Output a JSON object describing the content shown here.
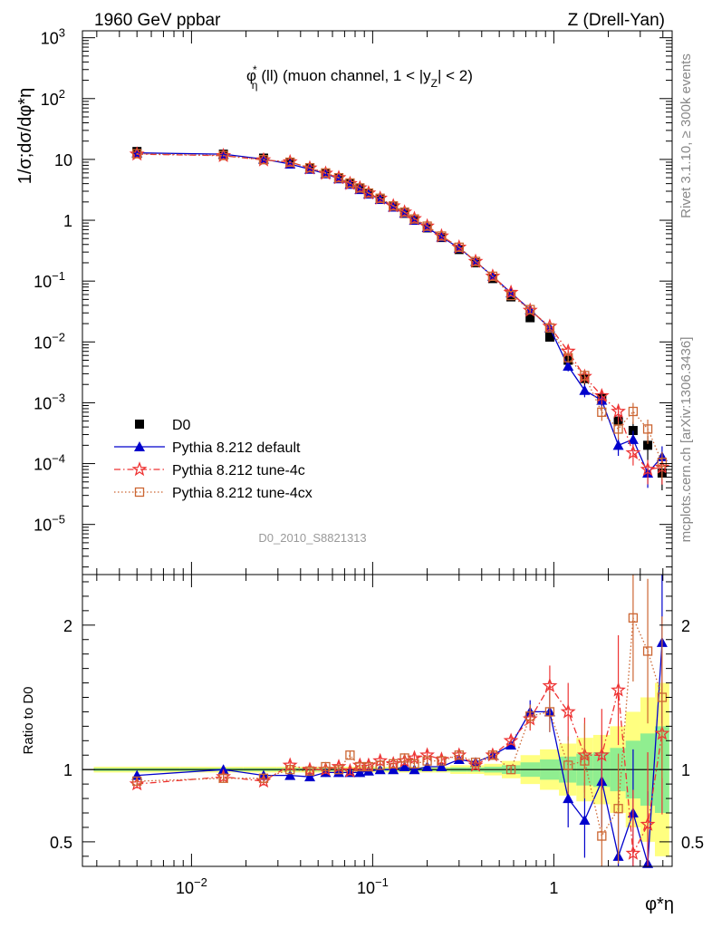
{
  "chart_data": {
    "type": "scatter",
    "header_left": "1960 GeV ppbar",
    "header_right": "Z (Drell-Yan)",
    "title": {
      "main": "φ",
      "sup": "*",
      "sub": "η",
      "rest": "(ll) (muon channel, 1 < |y",
      "sub2": "Z",
      "end": "| < 2)"
    },
    "ylabel": "1/σ;dσ/dφ*η",
    "xlabel": "φ*η",
    "ratio_ylabel": "Ratio to D0",
    "analysis_label": "D0_2010_S8821313",
    "side_label_top": "Rivet 3.1.10, ≥ 300k events",
    "side_label_bottom": "mcplots.cern.ch [arXiv:1306.3436]",
    "xlim": [
      0.0025,
      4.5
    ],
    "ylim_main": [
      1.5e-06,
      1300
    ],
    "ylim_ratio": [
      0.33,
      2.35
    ],
    "x_ticks": [
      {
        "v": 0.01,
        "b": "10",
        "e": "−2"
      },
      {
        "v": 0.1,
        "b": "10",
        "e": "−1"
      },
      {
        "v": 1,
        "b": "1",
        "e": ""
      }
    ],
    "y_ticks_main": [
      {
        "v": 1000,
        "b": "10",
        "e": "3"
      },
      {
        "v": 100,
        "b": "10",
        "e": "2"
      },
      {
        "v": 10,
        "b": "10",
        "e": ""
      },
      {
        "v": 1,
        "b": "1",
        "e": ""
      },
      {
        "v": 0.1,
        "b": "10",
        "e": "−1"
      },
      {
        "v": 0.01,
        "b": "10",
        "e": "−2"
      },
      {
        "v": 0.001,
        "b": "10",
        "e": "−3"
      },
      {
        "v": 0.0001,
        "b": "10",
        "e": "−4"
      },
      {
        "v": 1e-05,
        "b": "10",
        "e": "−5"
      }
    ],
    "y_ticks_ratio": [
      {
        "v": 0.5,
        "l": "0.5"
      },
      {
        "v": 1,
        "l": "1"
      },
      {
        "v": 2,
        "l": "2"
      }
    ],
    "x": [
      0.005,
      0.015,
      0.025,
      0.035,
      0.045,
      0.055,
      0.065,
      0.075,
      0.085,
      0.095,
      0.11,
      0.13,
      0.15,
      0.17,
      0.2,
      0.24,
      0.3,
      0.37,
      0.46,
      0.58,
      0.74,
      0.95,
      1.2,
      1.48,
      1.84,
      2.27,
      2.74,
      3.3,
      3.96
    ],
    "series": [
      {
        "name": "D0",
        "color": "#000000",
        "marker": "square-filled",
        "values": [
          13.5,
          12.2,
          10.5,
          8.8,
          7.2,
          5.9,
          4.9,
          4.0,
          3.3,
          2.75,
          2.2,
          1.65,
          1.3,
          1.0,
          0.75,
          0.52,
          0.33,
          0.2,
          0.11,
          0.055,
          0.025,
          0.012,
          0.005,
          0.0025,
          0.0012,
          0.0005,
          0.00035,
          0.0002,
          7e-05
        ]
      },
      {
        "name": "Pythia 8.212 default",
        "color": "#0000cc",
        "marker": "triangle-filled",
        "line": "solid",
        "values": [
          12.8,
          12.2,
          10.1,
          8.4,
          6.9,
          5.8,
          4.8,
          3.9,
          3.2,
          2.7,
          2.2,
          1.65,
          1.32,
          1.0,
          0.76,
          0.53,
          0.35,
          0.21,
          0.12,
          0.064,
          0.034,
          0.017,
          0.004,
          0.0016,
          0.0011,
          0.0002,
          0.00025,
          7e-05,
          0.00013
        ],
        "ratio": [
          0.96,
          1.0,
          0.96,
          0.96,
          0.95,
          0.98,
          0.98,
          0.98,
          0.98,
          0.99,
          1.0,
          1.0,
          1.02,
          1.0,
          1.02,
          1.02,
          1.07,
          1.05,
          1.1,
          1.17,
          1.4,
          1.4,
          0.8,
          0.65,
          0.92,
          0.4,
          0.7,
          0.35,
          1.88
        ]
      },
      {
        "name": "Pythia 8.212 tune-4c",
        "color": "#ee3333",
        "marker": "star-open",
        "line": "dashdot",
        "values": [
          12.2,
          11.5,
          9.8,
          9.1,
          7.2,
          5.9,
          5.0,
          4.0,
          3.4,
          2.8,
          2.3,
          1.72,
          1.36,
          1.06,
          0.8,
          0.55,
          0.36,
          0.21,
          0.12,
          0.065,
          0.033,
          0.018,
          0.007,
          0.0027,
          0.0013,
          0.00072,
          0.00015,
          8e-05,
          8.7e-05
        ],
        "ratio": [
          0.9,
          0.95,
          0.92,
          1.03,
          1.0,
          1.0,
          1.02,
          0.99,
          1.03,
          1.03,
          1.06,
          1.04,
          1.06,
          1.08,
          1.1,
          1.07,
          1.1,
          1.03,
          1.1,
          1.2,
          1.35,
          1.58,
          1.4,
          1.1,
          1.1,
          1.55,
          0.42,
          0.62,
          1.25
        ]
      },
      {
        "name": "Pythia 8.212 tune-4cx",
        "color": "#cc6633",
        "marker": "square-open",
        "line": "dotted",
        "values": [
          12.4,
          11.6,
          9.9,
          9.0,
          7.3,
          6.0,
          5.0,
          4.1,
          3.4,
          2.8,
          2.3,
          1.72,
          1.36,
          1.05,
          0.8,
          0.55,
          0.36,
          0.21,
          0.12,
          0.058,
          0.034,
          0.017,
          0.0055,
          0.0028,
          0.0007,
          0.00037,
          0.00072,
          0.00037,
          0.000105
        ],
        "ratio": [
          0.92,
          0.94,
          0.94,
          1.0,
          0.99,
          1.02,
          1.0,
          1.1,
          1.02,
          1.02,
          1.03,
          1.04,
          1.08,
          1.04,
          1.06,
          1.06,
          1.1,
          1.05,
          1.1,
          1.0,
          1.37,
          1.4,
          1.03,
          1.06,
          0.54,
          0.73,
          2.05,
          1.82,
          1.5
        ]
      }
    ],
    "ratio_band_half_width": [
      0.01,
      0.01,
      0.01,
      0.01,
      0.01,
      0.01,
      0.01,
      0.01,
      0.01,
      0.01,
      0.01,
      0.01,
      0.01,
      0.01,
      0.01,
      0.01,
      0.015,
      0.015,
      0.02,
      0.03,
      0.05,
      0.07,
      0.09,
      0.11,
      0.12,
      0.15,
      0.2,
      0.25,
      0.3
    ]
  }
}
